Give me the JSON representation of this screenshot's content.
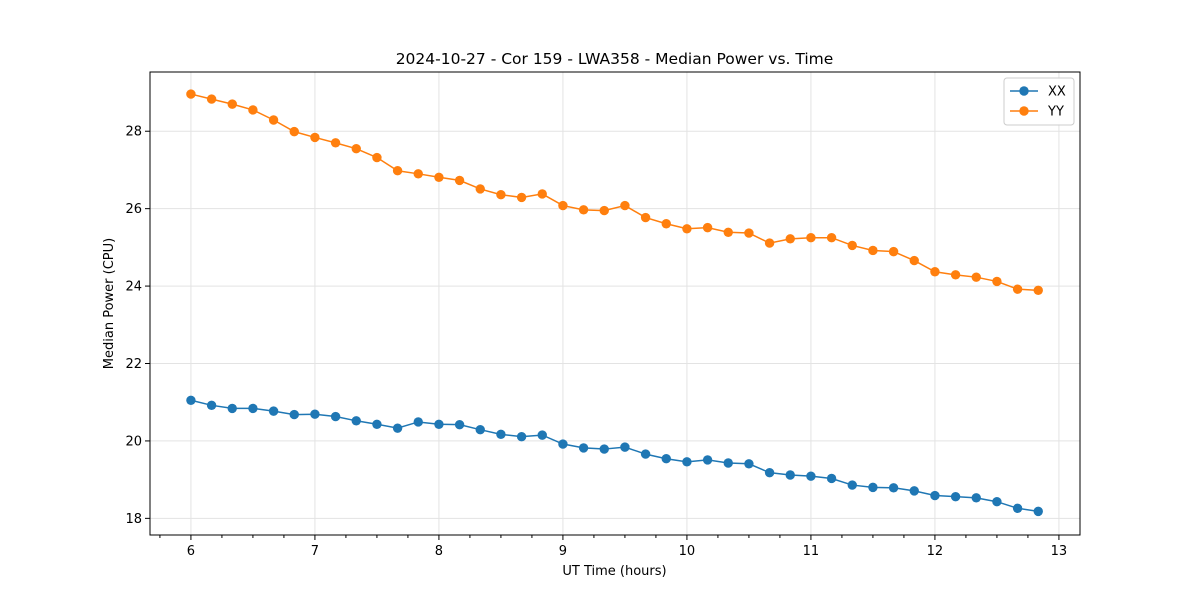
{
  "chart_data": {
    "type": "line",
    "title": "2024-10-27 - Cor 159 - LWA358 - Median Power vs. Time",
    "xlabel": "UT Time (hours)",
    "ylabel": "Median Power (CPU)",
    "xlim": [
      5.67,
      13.17
    ],
    "ylim": [
      17.57,
      29.53
    ],
    "xticks": [
      6,
      7,
      8,
      9,
      10,
      11,
      12,
      13
    ],
    "yticks": [
      18,
      20,
      22,
      24,
      26,
      28
    ],
    "x_minor_step": 0.25,
    "grid": true,
    "legend_position": "top-right",
    "x": [
      6.0,
      6.1667,
      6.3333,
      6.5,
      6.6667,
      6.8333,
      7.0,
      7.1667,
      7.3333,
      7.5,
      7.6667,
      7.8333,
      8.0,
      8.1667,
      8.3333,
      8.5,
      8.6667,
      8.8333,
      9.0,
      9.1667,
      9.3333,
      9.5,
      9.6667,
      9.8333,
      10.0,
      10.1667,
      10.3333,
      10.5,
      10.6667,
      10.8333,
      11.0,
      11.1667,
      11.3333,
      11.5,
      11.6667,
      11.8333,
      12.0,
      12.1667,
      12.3333,
      12.5,
      12.6667,
      12.8333
    ],
    "series": [
      {
        "name": "XX",
        "color": "#1f77b4",
        "values": [
          21.05,
          20.92,
          20.84,
          20.84,
          20.77,
          20.68,
          20.69,
          20.63,
          20.52,
          20.43,
          20.33,
          20.49,
          20.43,
          20.42,
          20.29,
          20.17,
          20.11,
          20.15,
          19.92,
          19.82,
          19.79,
          19.84,
          19.66,
          19.54,
          19.46,
          19.51,
          19.43,
          19.41,
          19.18,
          19.12,
          19.09,
          19.03,
          18.86,
          18.8,
          18.79,
          18.71,
          18.59,
          18.56,
          18.53,
          18.43,
          18.26,
          18.18
        ]
      },
      {
        "name": "YY",
        "color": "#ff7f0e",
        "values": [
          28.96,
          28.83,
          28.7,
          28.55,
          28.29,
          27.99,
          27.84,
          27.7,
          27.55,
          27.32,
          26.98,
          26.9,
          26.81,
          26.73,
          26.51,
          26.36,
          26.29,
          26.38,
          26.08,
          25.97,
          25.95,
          26.08,
          25.77,
          25.61,
          25.48,
          25.51,
          25.39,
          25.37,
          25.11,
          25.22,
          25.25,
          25.25,
          25.05,
          24.92,
          24.89,
          24.66,
          24.37,
          24.29,
          24.23,
          24.12,
          23.92,
          23.89
        ]
      }
    ]
  }
}
